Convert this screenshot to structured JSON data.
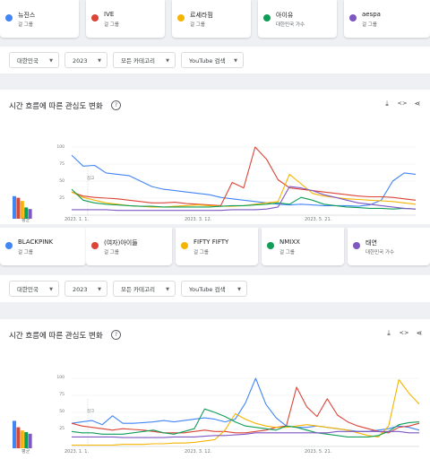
{
  "top_cards": [
    {
      "name": "뉴진스",
      "sub": "걸 그룹",
      "color": "#4285f4"
    },
    {
      "name": "IVE",
      "sub": "걸 그룹",
      "color": "#db4437"
    },
    {
      "name": "르세라핌",
      "sub": "걸 그룹",
      "color": "#f4b400"
    },
    {
      "name": "아이유",
      "sub": "대한민국 가수",
      "color": "#0f9d58"
    },
    {
      "name": "aespa",
      "sub": "걸 그룹",
      "color": "#7e57c2"
    }
  ],
  "filters_top": [
    "대한민국",
    "2023",
    "모든 카테고리",
    "YouTube 검색"
  ],
  "panel_title": "시간 흐름에 따른 관심도 변화",
  "avg_label": "평균",
  "help_glyph": "?",
  "tool_icons": {
    "download": "⤓",
    "embed": "<>",
    "share": "⋖"
  },
  "chart_top": {
    "type": "line",
    "x_ticks": [
      "2023. 1. 1.",
      "2023. 3. 12.",
      "2023. 5. 21."
    ],
    "y_ticks": [
      "100",
      "75",
      "50",
      "25"
    ],
    "note": "참고",
    "avg_values": [
      28,
      26,
      22,
      14,
      12
    ],
    "series": [
      {
        "color": "#4285f4",
        "values": [
          88,
          72,
          73,
          62,
          60,
          58,
          50,
          42,
          38,
          36,
          34,
          32,
          30,
          26,
          24,
          22,
          20,
          18,
          16,
          15,
          16,
          15,
          14,
          14,
          14,
          13,
          15,
          22,
          50,
          62,
          60
        ]
      },
      {
        "color": "#db4437",
        "values": [
          34,
          28,
          26,
          25,
          24,
          22,
          20,
          18,
          18,
          19,
          17,
          16,
          15,
          14,
          48,
          40,
          100,
          82,
          52,
          40,
          38,
          36,
          34,
          32,
          30,
          28,
          27,
          27,
          26,
          24,
          22
        ]
      },
      {
        "color": "#f4b400",
        "values": [
          34,
          26,
          22,
          18,
          16,
          14,
          13,
          12,
          12,
          13,
          14,
          15,
          14,
          13,
          13,
          14,
          16,
          18,
          20,
          60,
          46,
          32,
          28,
          26,
          24,
          23,
          22,
          21,
          20,
          18,
          16
        ]
      },
      {
        "color": "#0f9d58",
        "values": [
          38,
          22,
          18,
          16,
          15,
          14,
          13,
          13,
          12,
          12,
          12,
          12,
          12,
          13,
          14,
          14,
          15,
          16,
          18,
          16,
          26,
          22,
          16,
          14,
          12,
          11,
          10,
          10,
          9,
          10,
          9
        ]
      },
      {
        "color": "#7e57c2",
        "values": [
          8,
          8,
          8,
          8,
          7,
          7,
          7,
          7,
          7,
          7,
          7,
          7,
          7,
          7,
          8,
          8,
          8,
          9,
          12,
          42,
          40,
          36,
          30,
          26,
          22,
          18,
          16,
          14,
          12,
          10,
          9
        ]
      }
    ]
  },
  "mid_cards": [
    {
      "name": "BLACKPINK",
      "sub": "걸 그룹",
      "color": "#4285f4"
    },
    {
      "name": "(여자)아이들",
      "sub": "걸 그룹",
      "color": "#db4437"
    },
    {
      "name": "FIFTY FIFTY",
      "sub": "걸 그룹",
      "color": "#f4b400"
    },
    {
      "name": "NMIXX",
      "sub": "걸 그룹",
      "color": "#0f9d58"
    },
    {
      "name": "태연",
      "sub": "대한민국 가수",
      "color": "#7e57c2"
    }
  ],
  "filters_bottom": [
    "대한민국",
    "2023",
    "모든 카테고리",
    "YouTube 검색"
  ],
  "chart_bottom": {
    "type": "line",
    "x_ticks": [
      "2023. 1. 1.",
      "2023. 3. 12.",
      "2023. 5. 21."
    ],
    "y_ticks": [
      "100",
      "75",
      "50",
      "25"
    ],
    "note": "참고",
    "avg_values": [
      34,
      26,
      22,
      20,
      18
    ],
    "series": [
      {
        "color": "#4285f4",
        "values": [
          34,
          36,
          38,
          32,
          45,
          34,
          34,
          35,
          36,
          38,
          36,
          38,
          40,
          42,
          40,
          36,
          40,
          64,
          100,
          62,
          42,
          30,
          28,
          28,
          30,
          28,
          26,
          24,
          22,
          22,
          24,
          26,
          30,
          28,
          24
        ]
      },
      {
        "color": "#db4437",
        "values": [
          34,
          30,
          28,
          26,
          24,
          26,
          25,
          24,
          22,
          20,
          20,
          20,
          22,
          24,
          22,
          22,
          20,
          20,
          22,
          24,
          28,
          30,
          87,
          58,
          44,
          70,
          46,
          36,
          30,
          26,
          22,
          20,
          28,
          30,
          34
        ]
      },
      {
        "color": "#f4b400",
        "values": [
          2,
          2,
          2,
          2,
          2,
          3,
          3,
          3,
          4,
          4,
          5,
          5,
          6,
          8,
          10,
          24,
          48,
          40,
          34,
          30,
          28,
          28,
          30,
          32,
          30,
          28,
          26,
          24,
          20,
          16,
          14,
          30,
          98,
          78,
          62
        ]
      },
      {
        "color": "#0f9d58",
        "values": [
          22,
          20,
          20,
          18,
          18,
          18,
          20,
          22,
          24,
          20,
          18,
          22,
          26,
          55,
          50,
          44,
          36,
          30,
          28,
          26,
          24,
          30,
          28,
          24,
          20,
          18,
          16,
          14,
          14,
          14,
          16,
          22,
          32,
          35,
          36
        ]
      },
      {
        "color": "#7e57c2",
        "values": [
          14,
          14,
          14,
          14,
          14,
          13,
          13,
          13,
          13,
          13,
          14,
          14,
          14,
          15,
          16,
          16,
          17,
          18,
          20,
          20,
          20,
          20,
          20,
          20,
          20,
          20,
          22,
          22,
          22,
          22,
          22,
          22,
          22,
          20,
          20
        ]
      }
    ]
  }
}
